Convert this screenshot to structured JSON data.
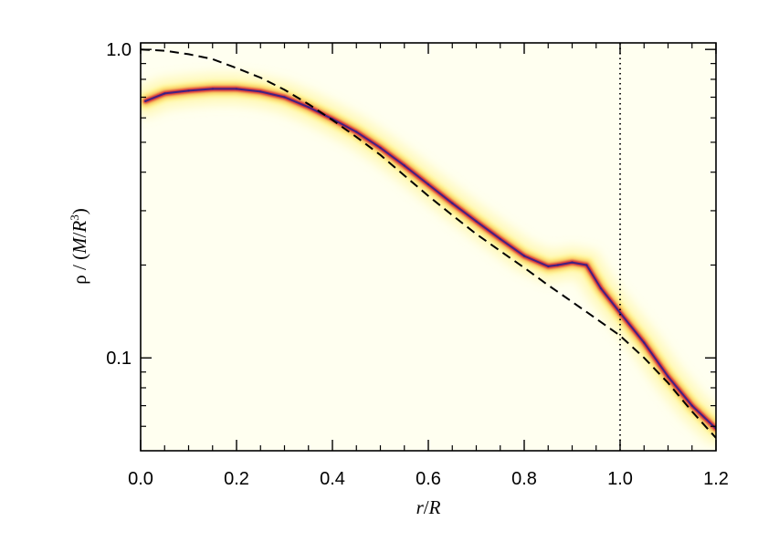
{
  "chart_data": {
    "type": "scatter",
    "title": "",
    "xlabel": "r/R",
    "ylabel": "ρ / (M/R³)",
    "ylabel_parts": {
      "rho": "ρ / (",
      "M": "M",
      "slash": "/",
      "R": "R",
      "exp": "3",
      "close": ")"
    },
    "xlabel_parts": {
      "r": "r",
      "slash": "/",
      "R": "R"
    },
    "xlim": [
      0.0,
      1.2
    ],
    "ylim": [
      0.05,
      1.05
    ],
    "y_scale": "log",
    "x_ticks": [
      0.0,
      0.2,
      0.4,
      0.6,
      0.8,
      1.0,
      1.2
    ],
    "x_tick_labels": [
      "0.0",
      "0.2",
      "0.4",
      "0.6",
      "0.8",
      "1.0",
      "1.2"
    ],
    "y_ticks": [
      0.1,
      1.0
    ],
    "y_tick_labels": [
      "0.1",
      "1.0"
    ],
    "grid": false,
    "vertical_reference_line": {
      "x": 1.0,
      "style": "dotted"
    },
    "series": [
      {
        "style": "dashed",
        "color": "#000000",
        "x": [
          0.0,
          0.05,
          0.1,
          0.15,
          0.2,
          0.25,
          0.3,
          0.35,
          0.4,
          0.45,
          0.5,
          0.55,
          0.6,
          0.65,
          0.7,
          0.75,
          0.8,
          0.85,
          0.9,
          0.95,
          1.0,
          1.05,
          1.1,
          1.15,
          1.2
        ],
        "y": [
          1.0,
          0.99,
          0.965,
          0.93,
          0.87,
          0.81,
          0.74,
          0.665,
          0.59,
          0.52,
          0.455,
          0.39,
          0.335,
          0.29,
          0.252,
          0.222,
          0.196,
          0.172,
          0.152,
          0.134,
          0.118,
          0.1,
          0.083,
          0.067,
          0.055
        ]
      },
      {
        "style": "density",
        "color": "#2a1f8c",
        "x": [
          0.01,
          0.05,
          0.1,
          0.15,
          0.2,
          0.25,
          0.3,
          0.35,
          0.4,
          0.45,
          0.5,
          0.55,
          0.6,
          0.65,
          0.7,
          0.75,
          0.8,
          0.85,
          0.87,
          0.9,
          0.93,
          0.96,
          1.0,
          1.05,
          1.1,
          1.15,
          1.2
        ],
        "y": [
          0.68,
          0.72,
          0.735,
          0.745,
          0.745,
          0.73,
          0.7,
          0.65,
          0.595,
          0.54,
          0.48,
          0.42,
          0.365,
          0.317,
          0.277,
          0.243,
          0.214,
          0.198,
          0.2,
          0.204,
          0.2,
          0.168,
          0.14,
          0.112,
          0.087,
          0.07,
          0.059
        ]
      }
    ]
  },
  "colors": {
    "plot_background": "#fffff0",
    "band_outer": "#fff27a",
    "band_mid": "#f3a24a",
    "band_inner": "#d4283a",
    "band_core": "#2a1f8c",
    "axis": "#000000"
  }
}
